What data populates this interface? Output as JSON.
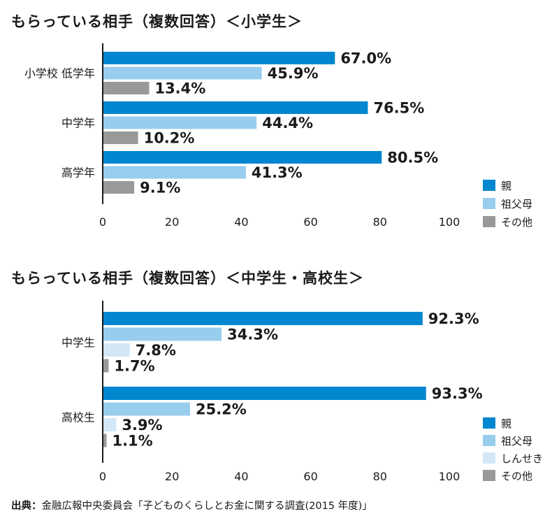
{
  "source": {
    "label": "出典",
    "separator": "：",
    "text": "金融広報中央委員会「子どものくらしとお金に関する調査(2015 年度)」"
  },
  "colors": {
    "parent": "#0087cf",
    "grandparent": "#99cdee",
    "relative": "#d3e7f7",
    "other": "#999999",
    "axis": "#1a1a1a"
  },
  "chart_data": [
    {
      "type": "bar",
      "orientation": "horizontal",
      "title": "もらっている相手（複数回答）＜小学生＞",
      "categories": [
        "小学校 低学年",
        "中学年",
        "高学年"
      ],
      "series": [
        {
          "name": "親",
          "color": "#0087cf",
          "values": [
            67.0,
            76.5,
            80.5
          ]
        },
        {
          "name": "祖父母",
          "color": "#99cdee",
          "values": [
            45.9,
            44.4,
            41.3
          ]
        },
        {
          "name": "その他",
          "color": "#999999",
          "values": [
            13.4,
            10.2,
            9.1
          ]
        }
      ],
      "data_labels": [
        [
          "67.0%",
          "45.9%",
          "13.4%"
        ],
        [
          "76.5%",
          "44.4%",
          "10.2%"
        ],
        [
          "80.5%",
          "41.3%",
          "9.1%"
        ]
      ],
      "xlim": [
        0,
        100
      ],
      "xticks": [
        "0",
        "20",
        "40",
        "60",
        "80",
        "100"
      ],
      "legend_position": "bottom-right",
      "grid": false
    },
    {
      "type": "bar",
      "orientation": "horizontal",
      "title": "もらっている相手（複数回答）＜中学生・高校生＞",
      "categories": [
        "中学生",
        "高校生"
      ],
      "series": [
        {
          "name": "親",
          "color": "#0087cf",
          "values": [
            92.3,
            93.3
          ]
        },
        {
          "name": "祖父母",
          "color": "#99cdee",
          "values": [
            34.3,
            25.2
          ]
        },
        {
          "name": "しんせき",
          "color": "#d3e7f7",
          "values": [
            7.8,
            3.9
          ]
        },
        {
          "name": "その他",
          "color": "#999999",
          "values": [
            1.7,
            1.1
          ]
        }
      ],
      "data_labels": [
        [
          "92.3%",
          "34.3%",
          "7.8%",
          "1.7%"
        ],
        [
          "93.3%",
          "25.2%",
          "3.9%",
          "1.1%"
        ]
      ],
      "xlim": [
        0,
        100
      ],
      "xticks": [
        "0",
        "20",
        "40",
        "60",
        "80",
        "100"
      ],
      "legend_position": "bottom-right",
      "grid": false
    }
  ]
}
